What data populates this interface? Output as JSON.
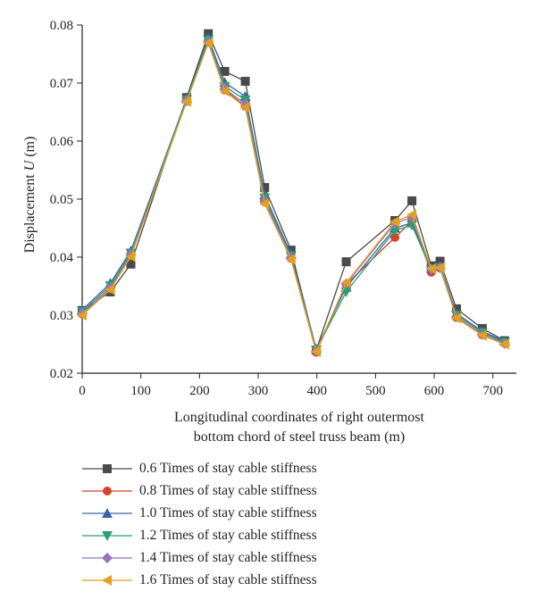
{
  "chart_data": {
    "type": "line",
    "xlabel": [
      "Longitudinal coordinates of right outermost",
      "bottom chord of steel truss beam (m)"
    ],
    "ylabel_prefix": "Displacement ",
    "ylabel_var": "U",
    "ylabel_unit": " (m)",
    "xlim": [
      0,
      740
    ],
    "ylim": [
      0.02,
      0.08
    ],
    "xticks": [
      0,
      100,
      200,
      300,
      400,
      500,
      600,
      700
    ],
    "yticks": [
      0.02,
      0.03,
      0.04,
      0.05,
      0.06,
      0.07,
      0.08
    ],
    "ytick_labels": [
      "0.02",
      "0.03",
      "0.04",
      "0.05",
      "0.06",
      "0.07",
      "0.08"
    ],
    "legend_position": "bottom",
    "series": [
      {
        "name": "0.6 Times of stay cable stiffness",
        "color": "#4a4a4a",
        "marker": "square",
        "x": [
          0,
          48,
          83,
          178,
          215,
          243,
          278,
          311,
          356,
          399,
          450,
          533,
          562,
          595,
          610,
          638,
          682,
          720
        ],
        "y": [
          0.0308,
          0.034,
          0.0388,
          0.0675,
          0.0785,
          0.072,
          0.0703,
          0.052,
          0.0412,
          0.024,
          0.0392,
          0.0463,
          0.0497,
          0.0385,
          0.0393,
          0.0311,
          0.0277,
          0.0256
        ]
      },
      {
        "name": "0.8 Times of stay cable stiffness",
        "color": "#d2452b",
        "marker": "circle",
        "x": [
          0,
          48,
          83,
          178,
          215,
          243,
          278,
          311,
          356,
          399,
          450,
          533,
          562,
          595,
          610,
          638,
          682,
          720
        ],
        "y": [
          0.0302,
          0.0345,
          0.0405,
          0.0672,
          0.0773,
          0.0688,
          0.066,
          0.0495,
          0.0398,
          0.0236,
          0.0353,
          0.0434,
          0.0462,
          0.0374,
          0.0381,
          0.0296,
          0.0266,
          0.0252
        ]
      },
      {
        "name": "1.0 Times of stay cable stiffness",
        "color": "#3a63a8",
        "marker": "triangle-up",
        "x": [
          0,
          48,
          83,
          178,
          215,
          243,
          278,
          311,
          356,
          399,
          450,
          533,
          562,
          595,
          610,
          638,
          682,
          720
        ],
        "y": [
          0.0309,
          0.0355,
          0.0411,
          0.0673,
          0.0778,
          0.0701,
          0.0677,
          0.0507,
          0.0405,
          0.0242,
          0.0348,
          0.045,
          0.0459,
          0.0381,
          0.0385,
          0.0303,
          0.0272,
          0.0255
        ]
      },
      {
        "name": "1.2 Times of stay cable stiffness",
        "color": "#2e9e6e",
        "marker": "triangle-down",
        "x": [
          0,
          48,
          83,
          178,
          215,
          243,
          278,
          311,
          356,
          399,
          450,
          533,
          562,
          595,
          610,
          638,
          682,
          720
        ],
        "y": [
          0.0306,
          0.0351,
          0.0407,
          0.0671,
          0.0774,
          0.0694,
          0.0671,
          0.0502,
          0.0402,
          0.024,
          0.034,
          0.0446,
          0.0455,
          0.0378,
          0.0382,
          0.03,
          0.027,
          0.0253
        ]
      },
      {
        "name": "1.4 Times of stay cable stiffness",
        "color": "#9a74b8",
        "marker": "diamond",
        "x": [
          0,
          48,
          83,
          178,
          215,
          243,
          278,
          311,
          356,
          399,
          450,
          533,
          562,
          595,
          610,
          638,
          682,
          720
        ],
        "y": [
          0.0303,
          0.0347,
          0.0404,
          0.0669,
          0.0771,
          0.069,
          0.0664,
          0.0497,
          0.0399,
          0.0238,
          0.0354,
          0.0458,
          0.0469,
          0.0379,
          0.0382,
          0.0297,
          0.0267,
          0.0251
        ]
      },
      {
        "name": "1.6 Times of stay cable stiffness",
        "color": "#e0a020",
        "marker": "triangle-left",
        "x": [
          0,
          48,
          83,
          178,
          215,
          243,
          278,
          311,
          356,
          399,
          450,
          533,
          562,
          595,
          610,
          638,
          682,
          720
        ],
        "y": [
          0.03,
          0.0344,
          0.0401,
          0.0668,
          0.0769,
          0.0686,
          0.0658,
          0.0492,
          0.0396,
          0.0237,
          0.0356,
          0.0461,
          0.0473,
          0.038,
          0.0382,
          0.0295,
          0.0265,
          0.025
        ]
      }
    ]
  }
}
